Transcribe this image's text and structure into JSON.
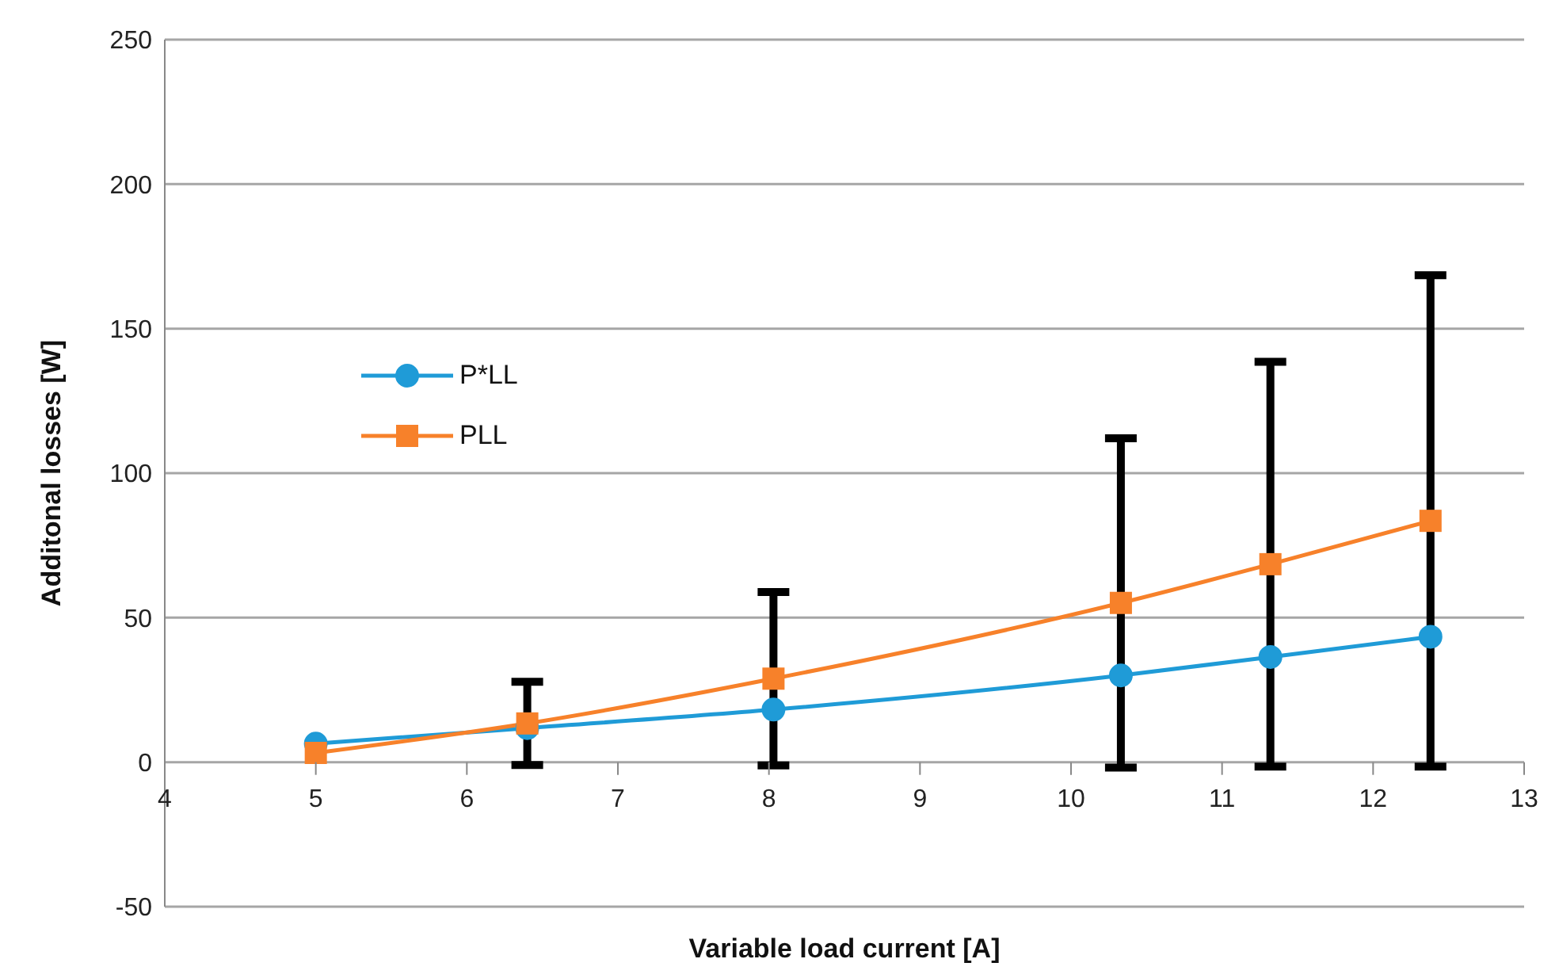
{
  "chart_data": {
    "type": "line",
    "xlabel": "Variable load current [A]",
    "ylabel": "Additonal losses [W]",
    "xlim": [
      4,
      13
    ],
    "xticks": [
      4,
      5,
      6,
      7,
      8,
      9,
      10,
      11,
      12,
      13
    ],
    "ylim": [
      -50,
      250
    ],
    "yticks": [
      -50,
      0,
      50,
      100,
      150,
      200,
      250
    ],
    "grid": "y",
    "legend": "left",
    "line_style": "solid",
    "series": [
      {
        "name": "P*LL",
        "color": "#1f9bd7",
        "marker": "circle",
        "x": [
          5,
          6.4,
          8.03,
          10.33,
          11.32,
          12.38
        ],
        "values": [
          6.4,
          11.8,
          18.2,
          30,
          36.4,
          43.4
        ]
      },
      {
        "name": "PLL",
        "color": "#f7812a",
        "marker": "square",
        "x": [
          5,
          6.4,
          8.03,
          10.33,
          11.32,
          12.38
        ],
        "values": [
          3.2,
          13.4,
          28.9,
          55.1,
          68.5,
          83.5
        ],
        "errors": [
          null,
          14.4,
          30,
          57,
          70,
          85
        ]
      }
    ]
  }
}
